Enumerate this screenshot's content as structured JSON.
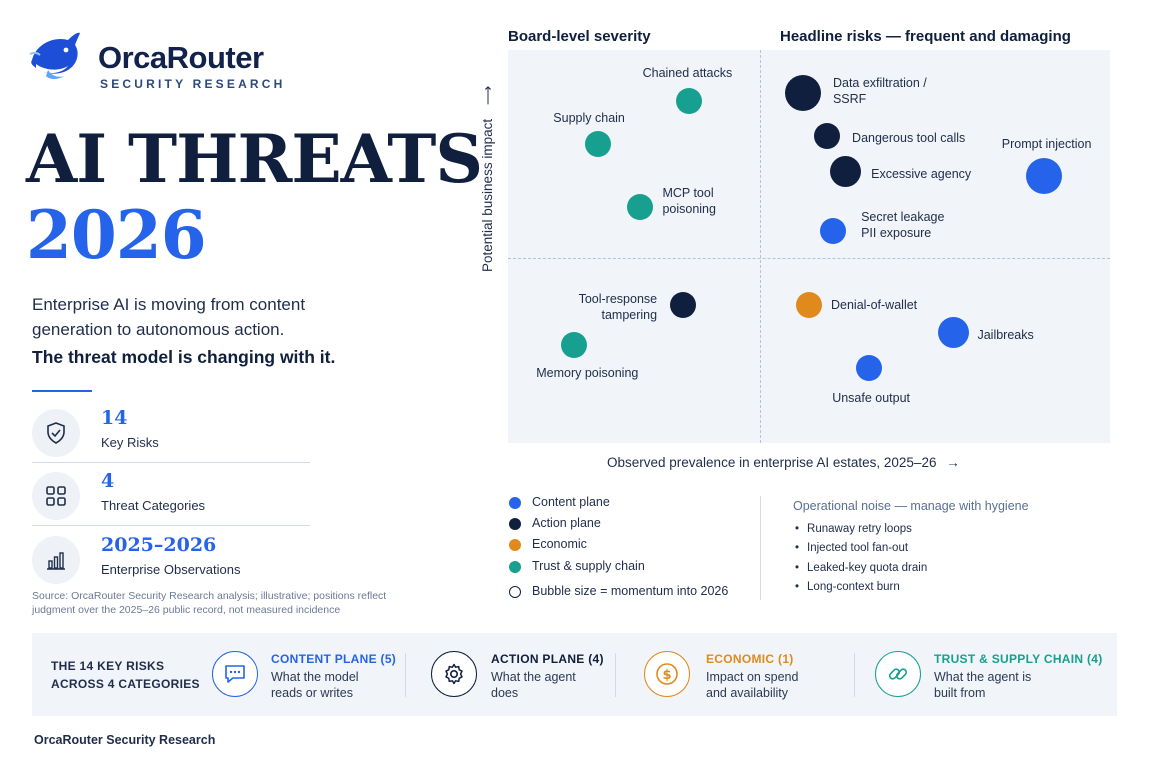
{
  "brand": {
    "name": "OrcaRouter",
    "subtitle": "SECURITY RESEARCH"
  },
  "headline": {
    "line1": "AI THREATS",
    "line2": "2026"
  },
  "intro": {
    "text": "Enterprise AI is moving from content generation to autonomous action.",
    "bold": "The threat model is changing with it."
  },
  "stats": [
    {
      "value": "14",
      "label": "Key Risks",
      "icon": "shield-check-icon"
    },
    {
      "value": "4",
      "label": "Threat Categories",
      "icon": "grid-icon"
    },
    {
      "value": "2025–2026",
      "label": "Enterprise Observations",
      "icon": "bar-chart-icon"
    }
  ],
  "source_note": "Source: OrcaRouter Security Research analysis; illustrative; positions reflect judgment over the 2025–26 public record, not measured incidence",
  "colors": {
    "content": "#2563eb",
    "action": "#0f1f3d",
    "economic": "#e08a1e",
    "trust": "#17a08f"
  },
  "chart_data": {
    "type": "scatter",
    "quadrant_titles": {
      "top_left": "Board-level severity",
      "top_right": "Headline risks — frequent and damaging"
    },
    "ylabel": "Potential business impact",
    "xlabel": "Observed prevalence in enterprise AI estates, 2025–26",
    "x_arrow": "→",
    "y_arrow": "⟶",
    "grid": false,
    "legend_placement": "bottom-left",
    "points": [
      {
        "label": "Chained attacks",
        "category": "trust",
        "x": 0.3,
        "y": 0.87,
        "size": 2
      },
      {
        "label": "Supply chain",
        "category": "trust",
        "x": 0.15,
        "y": 0.76,
        "size": 2
      },
      {
        "label": "MCP tool poisoning",
        "category": "trust",
        "x": 0.22,
        "y": 0.6,
        "size": 2
      },
      {
        "label": "Data exfiltration / SSRF",
        "category": "action",
        "x": 0.49,
        "y": 0.89,
        "size": 3
      },
      {
        "label": "Dangerous tool calls",
        "category": "action",
        "x": 0.53,
        "y": 0.78,
        "size": 2
      },
      {
        "label": "Excessive agency",
        "category": "action",
        "x": 0.56,
        "y": 0.69,
        "size": 2.5
      },
      {
        "label": "Prompt injection",
        "category": "content",
        "x": 0.89,
        "y": 0.68,
        "size": 3
      },
      {
        "label": "Secret leakage PII exposure",
        "category": "content",
        "x": 0.54,
        "y": 0.54,
        "size": 2
      },
      {
        "label": "Tool-response tampering",
        "category": "action",
        "x": 0.29,
        "y": 0.35,
        "size": 2
      },
      {
        "label": "Memory poisoning",
        "category": "trust",
        "x": 0.11,
        "y": 0.25,
        "size": 2
      },
      {
        "label": "Denial-of-wallet",
        "category": "economic",
        "x": 0.5,
        "y": 0.35,
        "size": 2
      },
      {
        "label": "Jailbreaks",
        "category": "content",
        "x": 0.74,
        "y": 0.28,
        "size": 2.5
      },
      {
        "label": "Unsafe output",
        "category": "content",
        "x": 0.6,
        "y": 0.19,
        "size": 2
      }
    ]
  },
  "legend": [
    {
      "label": "Content plane",
      "category": "content"
    },
    {
      "label": "Action plane",
      "category": "action"
    },
    {
      "label": "Economic",
      "category": "economic"
    },
    {
      "label": "Trust & supply chain",
      "category": "trust"
    }
  ],
  "bubble_note": "Bubble size = momentum into 2026",
  "noise": {
    "title": "Operational noise — manage with hygiene",
    "items": [
      "Runaway retry loops",
      "Injected tool fan-out",
      "Leaked-key quota drain",
      "Long-context burn"
    ]
  },
  "categories_band": {
    "title_line1": "THE 14 KEY RISKS",
    "title_line2": "ACROSS 4 CATEGORIES",
    "items": [
      {
        "title": "CONTENT PLANE (5)",
        "desc": "What the model reads or writes",
        "icon": "chat-icon"
      },
      {
        "title": "ACTION PLANE (4)",
        "desc": "What the agent does",
        "icon": "gear-icon"
      },
      {
        "title": "ECONOMIC (1)",
        "desc": "Impact on spend and availability",
        "icon": "dollar-icon"
      },
      {
        "title": "TRUST & SUPPLY CHAIN (4)",
        "desc": "What the agent is built from",
        "icon": "link-icon"
      }
    ]
  },
  "footer": "OrcaRouter Security Research"
}
